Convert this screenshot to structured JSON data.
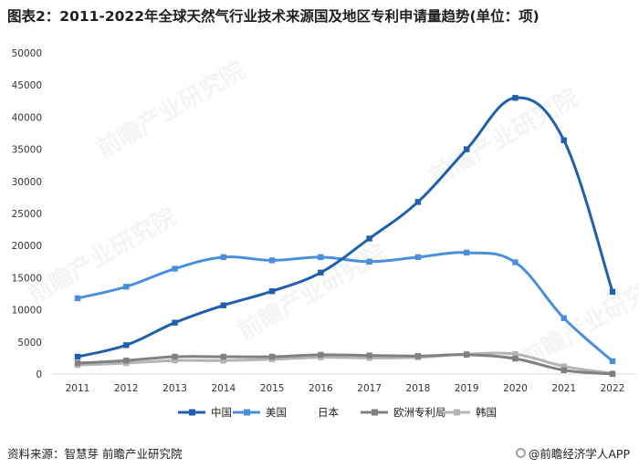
{
  "title": "图表2：2011-2022年全球天然气行业技术来源国及地区专利申请量趋势(单位：项)",
  "source": "资料来源：智慧芽 前瞻产业研究院",
  "brand": "@前瞻经济学人APP",
  "watermark": "前瞻产业研究院",
  "chart_data": {
    "type": "line",
    "categories": [
      "2011",
      "2012",
      "2013",
      "2014",
      "2015",
      "2016",
      "2017",
      "2018",
      "2019",
      "2020",
      "2021",
      "2022"
    ],
    "ylim": [
      0,
      50000
    ],
    "yticks": [
      "0",
      "5000",
      "10000",
      "15000",
      "20000",
      "25000",
      "30000",
      "35000",
      "40000",
      "45000",
      "50000"
    ],
    "grid": false,
    "legend_position": "bottom",
    "series": [
      {
        "name": "中国",
        "color": "#1f5fae",
        "values": [
          2700,
          4500,
          8000,
          10700,
          12900,
          15800,
          21100,
          26800,
          35000,
          43000,
          36400,
          12800
        ]
      },
      {
        "name": "美国",
        "color": "#4a8fdb",
        "values": [
          11800,
          13600,
          16400,
          18200,
          17700,
          18200,
          17500,
          18200,
          18900,
          17400,
          8700,
          2000
        ]
      },
      {
        "name": "日本",
        "color": "#ffffff",
        "values": [
          null,
          null,
          null,
          null,
          null,
          null,
          null,
          null,
          null,
          null,
          null,
          null
        ]
      },
      {
        "name": "欧洲专利局",
        "color": "#808080",
        "values": [
          1700,
          2100,
          2700,
          2700,
          2700,
          3000,
          2900,
          2800,
          3000,
          2400,
          600,
          0
        ]
      },
      {
        "name": "韩国",
        "color": "#b4b4b4",
        "values": [
          1400,
          1700,
          2100,
          2100,
          2300,
          2600,
          2500,
          2600,
          3100,
          3100,
          1200,
          100
        ]
      }
    ]
  }
}
